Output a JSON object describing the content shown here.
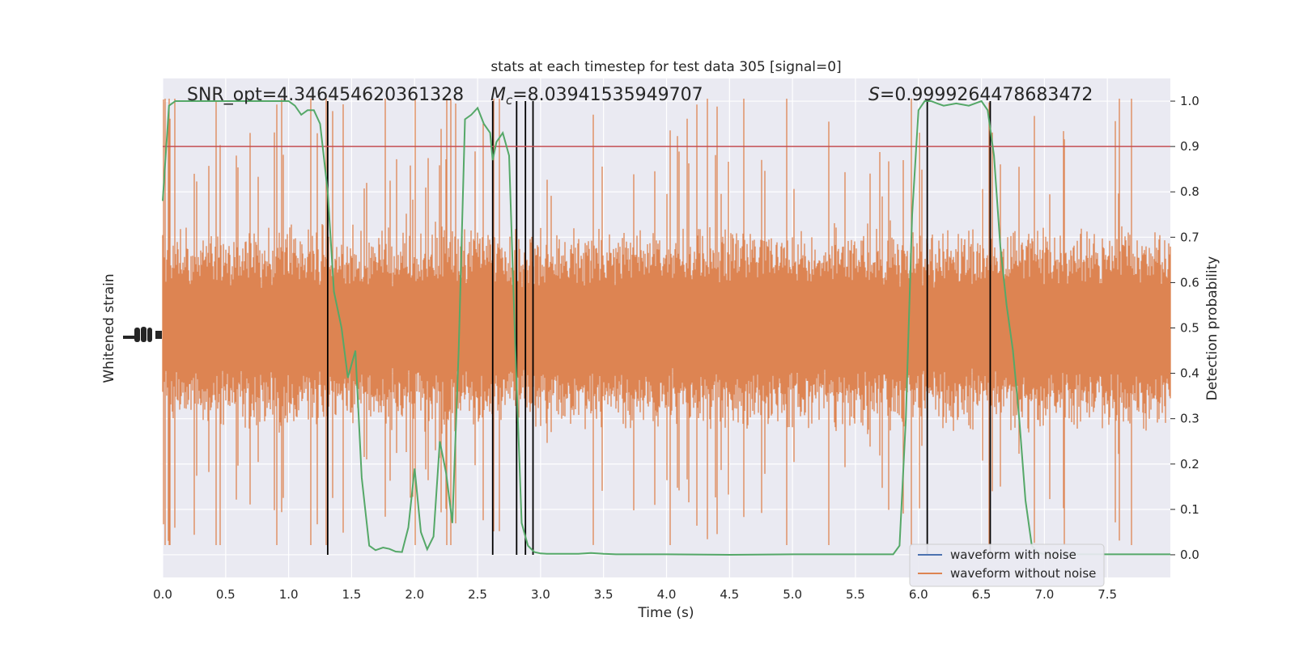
{
  "chart_data": {
    "type": "line",
    "title": "stats at each timestep for test data 305 [signal=0]",
    "xlabel": "Time (s)",
    "ylabel_left": "Whitened strain",
    "ylabel_right": "Detection probability",
    "xlim": [
      0.0,
      8.0
    ],
    "y_right_lim": [
      -0.05,
      1.05
    ],
    "x_ticks": [
      "0.0",
      "0.5",
      "1.0",
      "1.5",
      "2.0",
      "2.5",
      "3.0",
      "3.5",
      "4.0",
      "4.5",
      "5.0",
      "5.5",
      "6.0",
      "6.5",
      "7.0",
      "7.5"
    ],
    "y_right_ticks": [
      "0.0",
      "0.1",
      "0.2",
      "0.3",
      "0.4",
      "0.5",
      "0.6",
      "0.7",
      "0.8",
      "0.9",
      "1.0"
    ],
    "threshold": 0.9,
    "annotations": {
      "snr": "SNR_opt=4.346454620361328",
      "mc_symbol": "M",
      "mc_sub": "c",
      "mc_value": "=8.03941535949707",
      "s_symbol": "S",
      "s_value": "=0.9999264478683472"
    },
    "vertical_lines_x": [
      1.31,
      2.62,
      2.81,
      2.88,
      2.94,
      6.07,
      6.57
    ],
    "legend": [
      "waveform with noise",
      "waveform without noise"
    ],
    "colors": {
      "noise_waveform": "#dd8452",
      "clean_waveform": "#4c72b0",
      "probability": "#55a868",
      "threshold": "#c44e52",
      "event_lines": "#000000",
      "plot_bg": "#eaeaf2",
      "grid": "#ffffff"
    },
    "probability": {
      "x": [
        0.0,
        0.05,
        0.1,
        0.15,
        0.2,
        0.25,
        0.3,
        0.35,
        0.4,
        0.45,
        0.5,
        0.55,
        0.6,
        0.65,
        0.7,
        0.75,
        0.8,
        0.85,
        0.9,
        0.95,
        1.0,
        1.05,
        1.1,
        1.15,
        1.2,
        1.25,
        1.31,
        1.36,
        1.42,
        1.47,
        1.53,
        1.58,
        1.64,
        1.69,
        1.75,
        1.8,
        1.85,
        1.9,
        1.95,
        2.0,
        2.05,
        2.1,
        2.15,
        2.2,
        2.25,
        2.3,
        2.35,
        2.4,
        2.45,
        2.5,
        2.55,
        2.6,
        2.62,
        2.65,
        2.7,
        2.75,
        2.8,
        2.85,
        2.9,
        2.95,
        3.0,
        3.05,
        3.1,
        3.15,
        3.2,
        3.25,
        3.3,
        3.35,
        3.4,
        3.5,
        3.6,
        3.7,
        3.8,
        4.0,
        4.5,
        5.0,
        5.5,
        5.7,
        5.8,
        5.85,
        5.9,
        5.95,
        6.0,
        6.05,
        6.1,
        6.15,
        6.2,
        6.3,
        6.4,
        6.5,
        6.55,
        6.6,
        6.65,
        6.7,
        6.75,
        6.8,
        6.85,
        6.9,
        6.95,
        7.0,
        7.5,
        8.0
      ],
      "y": [
        0.78,
        0.99,
        1.0,
        1.0,
        1.0,
        1.0,
        1.0,
        1.0,
        1.0,
        1.0,
        1.0,
        1.0,
        1.0,
        1.0,
        1.0,
        1.0,
        1.0,
        1.0,
        1.0,
        1.0,
        1.0,
        0.99,
        0.97,
        0.98,
        0.98,
        0.95,
        0.8,
        0.58,
        0.5,
        0.39,
        0.45,
        0.17,
        0.02,
        0.01,
        0.016,
        0.013,
        0.007,
        0.006,
        0.06,
        0.19,
        0.05,
        0.012,
        0.04,
        0.25,
        0.18,
        0.07,
        0.45,
        0.96,
        0.97,
        0.985,
        0.95,
        0.93,
        0.87,
        0.91,
        0.93,
        0.88,
        0.45,
        0.07,
        0.02,
        0.006,
        0.003,
        0.002,
        0.002,
        0.002,
        0.002,
        0.002,
        0.002,
        0.003,
        0.004,
        0.002,
        0.001,
        0.001,
        0.001,
        0.001,
        0.0,
        0.001,
        0.001,
        0.001,
        0.001,
        0.02,
        0.3,
        0.75,
        0.98,
        1.0,
        1.0,
        0.995,
        0.99,
        0.995,
        0.99,
        1.0,
        0.98,
        0.88,
        0.68,
        0.55,
        0.45,
        0.3,
        0.12,
        0.02,
        0.005,
        0.001,
        0.001,
        0.001
      ]
    }
  }
}
